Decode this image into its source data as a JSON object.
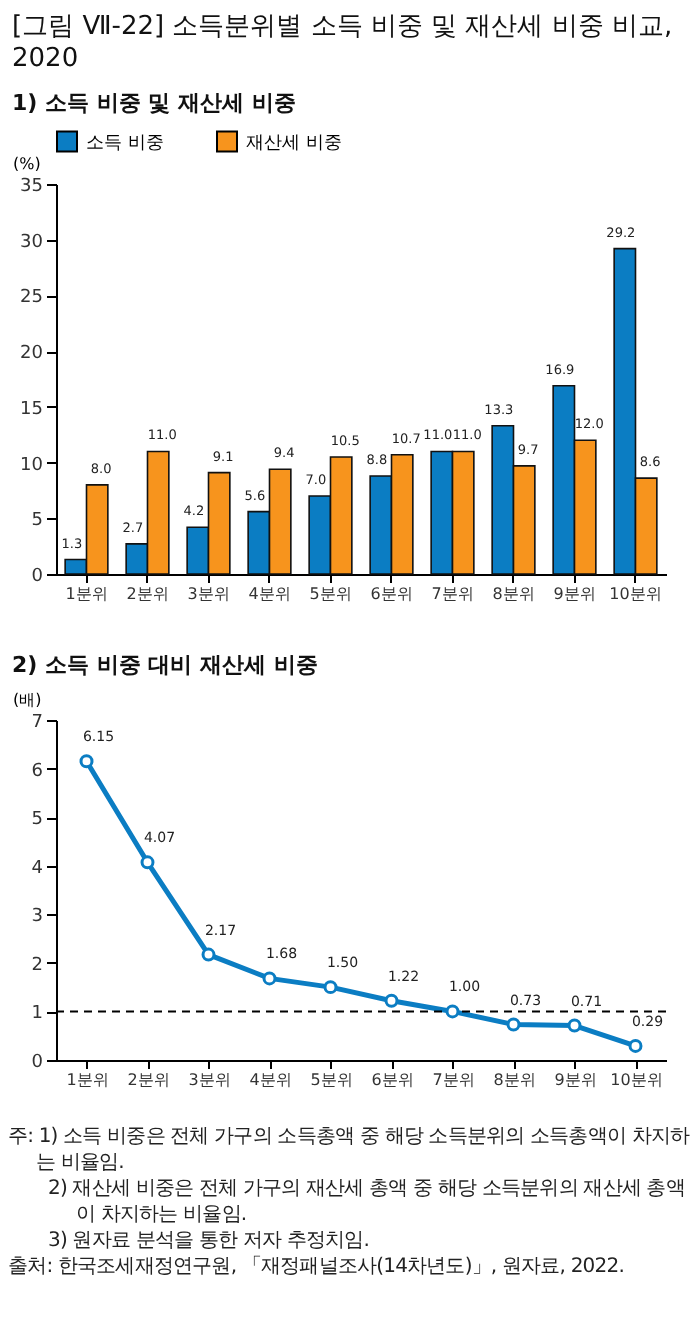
{
  "chart_data": [
    {
      "type": "bar",
      "title": "[그림 Ⅶ-22] 소득분위별 소득 비중 및 재산세 비중 비교, 2020",
      "subtitle": "1) 소득 비중 및 재산세 비중",
      "ylabel": "(%)",
      "categories": [
        "1분위",
        "2분위",
        "3분위",
        "4분위",
        "5분위",
        "6분위",
        "7분위",
        "8분위",
        "9분위",
        "10분위"
      ],
      "series": [
        {
          "name": "소득 비중",
          "color": "#0b7dc3",
          "values": [
            1.3,
            2.7,
            4.2,
            5.6,
            7.0,
            8.8,
            11.0,
            13.3,
            16.9,
            29.2
          ],
          "value_labels": [
            "1.3",
            "2.7",
            "4.2",
            "5.6",
            "7.0",
            "8.8",
            "11.0",
            "13.3",
            "16.9",
            "29.2"
          ]
        },
        {
          "name": "재산세 비중",
          "color": "#f7941d",
          "values": [
            8.0,
            11.0,
            9.1,
            9.4,
            10.5,
            10.7,
            11.0,
            9.7,
            12.0,
            8.6
          ],
          "value_labels": [
            "8.0",
            "11.0",
            "9.1",
            "9.4",
            "10.5",
            "10.7",
            "11.0",
            "9.7",
            "12.0",
            "8.6"
          ]
        }
      ],
      "ylim": [
        0,
        35
      ],
      "yticks": [
        0,
        5,
        10,
        15,
        20,
        25,
        30,
        35
      ],
      "legend": "top"
    },
    {
      "type": "line",
      "title": "2) 소득 비중 대비 재산세 비중",
      "ylabel": "(배)",
      "categories": [
        "1분위",
        "2분위",
        "3분위",
        "4분위",
        "5분위",
        "6분위",
        "7분위",
        "8분위",
        "9분위",
        "10분위"
      ],
      "series": [
        {
          "color": "#0b7dc3",
          "values": [
            6.15,
            4.07,
            2.17,
            1.68,
            1.5,
            1.22,
            1.0,
            0.73,
            0.71,
            0.29
          ],
          "value_labels": [
            "6.15",
            "4.07",
            "2.17",
            "1.68",
            "1.50",
            "1.22",
            "1.00",
            "0.73",
            "0.71",
            "0.29"
          ]
        }
      ],
      "ylim": [
        0,
        7
      ],
      "yticks": [
        0,
        1,
        2,
        3,
        4,
        5,
        6,
        7
      ],
      "marker": "circle",
      "ref_lines": [
        {
          "axis": "y",
          "value": 1,
          "color": "#000000",
          "line_style": "dashed"
        }
      ],
      "annotations": [
        "주: 1) 소득 비중은 전체 가구의 소득총액 중 해당 소득분위의 소득총액이 차지하는 비율임.",
        "2) 재산세 비중은 전체 가구의 재산세 총액 중 해당 소득분위의 재산세 총액이 차지하는 비율임.",
        "3) 원자료 분석을 통한 저자 추정치임.",
        "출처: 한국조세재정연구원, 「재정패널조사(14차년도)」, 원자료, 2022."
      ]
    }
  ]
}
